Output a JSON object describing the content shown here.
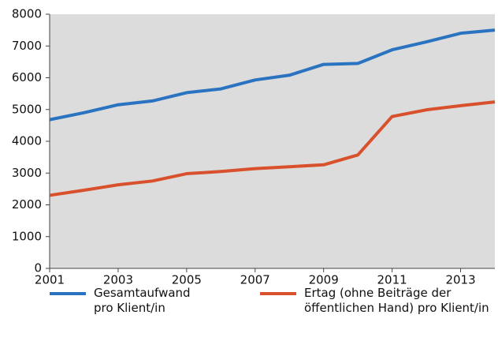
{
  "chart_data": {
    "type": "line",
    "x": [
      2001,
      2002,
      2003,
      2004,
      2005,
      2006,
      2007,
      2008,
      2009,
      2010,
      2011,
      2012,
      2013,
      2014
    ],
    "series": [
      {
        "name": "Gesamtaufwand pro Klient/in",
        "color": "#2a73c1",
        "values": [
          4680,
          4900,
          5150,
          5270,
          5530,
          5650,
          5930,
          6080,
          6420,
          6450,
          6880,
          7130,
          7400,
          7500
        ]
      },
      {
        "name": "Ertag (ohne Beiträge der öffentlichen Hand) pro Klient/in",
        "color": "#d9512c",
        "values": [
          2300,
          2460,
          2630,
          2750,
          2980,
          3050,
          3140,
          3200,
          3260,
          3570,
          4780,
          4990,
          5120,
          5240
        ]
      }
    ],
    "xlim": [
      2001,
      2014
    ],
    "xticks": [
      2001,
      2003,
      2005,
      2007,
      2009,
      2011,
      2013
    ],
    "ylim": [
      0,
      8000
    ],
    "yticks": [
      0,
      1000,
      2000,
      3000,
      4000,
      5000,
      6000,
      7000,
      8000
    ],
    "grid": false
  }
}
